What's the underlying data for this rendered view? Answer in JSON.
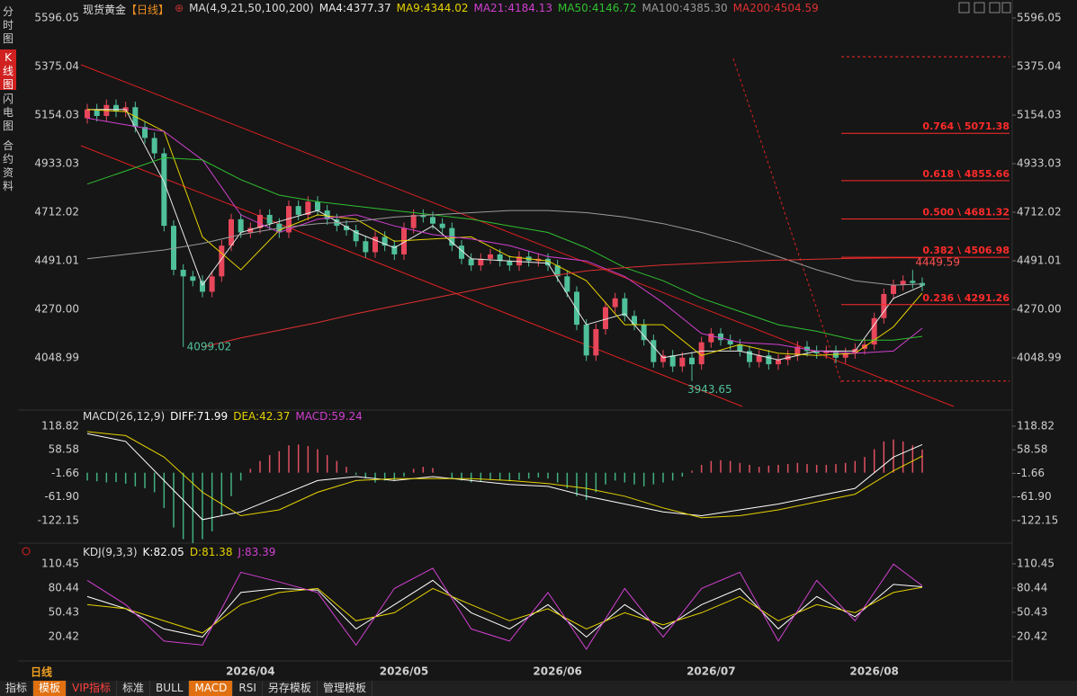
{
  "ui": {
    "sidebar": [
      "分时图",
      "K线图",
      "闪电图",
      "合约资料"
    ],
    "period_label": "日线",
    "toolbar": [
      "指标",
      "模板",
      "VIP指标",
      "标准",
      "BULL",
      "MACD",
      "RSI",
      "另存模板",
      "管理模板"
    ]
  },
  "chart_data": [
    {
      "type": "candlestick",
      "title": "现货黄金",
      "period": "【日线】",
      "ma_params": "MA(4,9,21,50,100,200)",
      "ylim": [
        3815.7,
        5645.2
      ],
      "yticks": [
        5596.05,
        5375.04,
        5154.03,
        4933.03,
        4712.02,
        4491.01,
        {
          "value": 4270,
          "label": "4270.00"
        },
        4048.99
      ],
      "xticks": [
        {
          "value": 17,
          "label": "2026/04"
        },
        {
          "value": 33,
          "label": "2026/05"
        },
        {
          "value": 49,
          "label": "2026/06"
        },
        {
          "value": 65,
          "label": "2026/07"
        },
        {
          "value": 82,
          "label": "2026/08"
        }
      ],
      "colors": {
        "up": "#e8465a",
        "down": "#4fc09a"
      },
      "candles": {
        "open": [
          5140,
          5180,
          5150,
          5200,
          5170,
          5190,
          5100,
          5050,
          4980,
          4650,
          4450,
          4420,
          4400,
          4350,
          4420,
          4560,
          4680,
          4620,
          4640,
          4700,
          4660,
          4620,
          4740,
          4700,
          4760,
          4720,
          4680,
          4650,
          4630,
          4580,
          4530,
          4600,
          4560,
          4520,
          4640,
          4700,
          4690,
          4660,
          4640,
          4560,
          4500,
          4470,
          4500,
          4520,
          4490,
          4470,
          4510,
          4490,
          4500,
          4470,
          4420,
          4350,
          4200,
          4060,
          4180,
          4280,
          4320,
          4240,
          4200,
          4130,
          4030,
          4060,
          4010,
          4050,
          4020,
          4120,
          4160,
          4130,
          4110,
          4080,
          4030,
          4060,
          4020,
          4040,
          4060,
          4100,
          4080,
          4070,
          4080,
          4050,
          4070,
          4090,
          4110,
          4230,
          4340,
          4380,
          4400,
          4390
        ],
        "high": [
          5205,
          5205,
          5225,
          5225,
          5215,
          5215,
          5125,
          5075,
          5005,
          4675,
          4475,
          4445,
          4425,
          4445,
          4585,
          4705,
          4705,
          4665,
          4725,
          4725,
          4685,
          4765,
          4765,
          4785,
          4785,
          4745,
          4705,
          4675,
          4655,
          4605,
          4625,
          4625,
          4585,
          4665,
          4725,
          4725,
          4715,
          4685,
          4665,
          4585,
          4525,
          4525,
          4545,
          4545,
          4515,
          4535,
          4535,
          4525,
          4525,
          4495,
          4445,
          4375,
          4225,
          4205,
          4305,
          4345,
          4345,
          4265,
          4225,
          4155,
          4085,
          4085,
          4075,
          4075,
          4145,
          4185,
          4185,
          4155,
          4135,
          4105,
          4085,
          4085,
          4065,
          4085,
          4125,
          4125,
          4105,
          4105,
          4105,
          4095,
          4115,
          4135,
          4255,
          4365,
          4405,
          4425,
          4449.59,
          4415
        ],
        "low": [
          5115,
          5125,
          5125,
          5145,
          5145,
          5075,
          5025,
          4955,
          4625,
          4425,
          4099.02,
          4375,
          4325,
          4325,
          4395,
          4535,
          4595,
          4595,
          4615,
          4635,
          4595,
          4595,
          4675,
          4675,
          4695,
          4655,
          4625,
          4605,
          4555,
          4505,
          4505,
          4535,
          4495,
          4495,
          4615,
          4665,
          4635,
          4615,
          4535,
          4475,
          4445,
          4445,
          4475,
          4465,
          4445,
          4445,
          4465,
          4465,
          4445,
          4395,
          4325,
          4175,
          4035,
          4035,
          4155,
          4255,
          4215,
          4175,
          4105,
          4005,
          4005,
          3985,
          3985,
          3943.65,
          3995,
          4095,
          4105,
          4085,
          4055,
          4005,
          4005,
          3995,
          3995,
          4015,
          4035,
          4055,
          4045,
          4045,
          4025,
          4025,
          4045,
          4065,
          4085,
          4205,
          4315,
          4355,
          4365,
          4353
        ],
        "close": [
          5180,
          5150,
          5200,
          5170,
          5190,
          5100,
          5050,
          4980,
          4650,
          4450,
          4420,
          4400,
          4350,
          4420,
          4560,
          4680,
          4620,
          4640,
          4700,
          4660,
          4620,
          4740,
          4700,
          4760,
          4720,
          4680,
          4650,
          4630,
          4580,
          4530,
          4600,
          4560,
          4520,
          4640,
          4700,
          4690,
          4660,
          4640,
          4560,
          4500,
          4470,
          4500,
          4520,
          4490,
          4470,
          4510,
          4490,
          4500,
          4470,
          4420,
          4350,
          4200,
          4060,
          4180,
          4280,
          4320,
          4240,
          4200,
          4130,
          4030,
          4060,
          4010,
          4050,
          4020,
          4120,
          4160,
          4130,
          4110,
          4080,
          4030,
          4060,
          4020,
          4040,
          4060,
          4100,
          4080,
          4070,
          4080,
          4050,
          4070,
          4090,
          4110,
          4230,
          4340,
          4380,
          4400,
          4390,
          4378
        ]
      },
      "line_x": [
        0,
        4,
        8,
        12,
        16,
        20,
        24,
        28,
        32,
        36,
        40,
        44,
        48,
        52,
        56,
        60,
        64,
        68,
        72,
        76,
        80,
        84,
        87
      ],
      "series": [
        {
          "name": "MA4:4377.37",
          "color": "#e8e8e8",
          "values": [
            5180,
            5180,
            4850,
            4380,
            4620,
            4670,
            4720,
            4620,
            4550,
            4650,
            4500,
            4490,
            4480,
            4200,
            4250,
            4050,
            4080,
            4080,
            4040,
            4080,
            4080,
            4320,
            4377.37
          ]
        },
        {
          "name": "MA9:4344.02",
          "color": "#e6d200",
          "values": [
            5180,
            5170,
            5080,
            4600,
            4450,
            4630,
            4700,
            4680,
            4580,
            4590,
            4600,
            4510,
            4490,
            4400,
            4200,
            4200,
            4060,
            4110,
            4070,
            4060,
            4070,
            4190,
            4344.02
          ]
        },
        {
          "name": "MA21:4184.13",
          "color": "#d040d0",
          "values": [
            5140,
            5110,
            5080,
            4950,
            4700,
            4620,
            4680,
            4700,
            4650,
            4610,
            4590,
            4560,
            4510,
            4490,
            4420,
            4300,
            4160,
            4120,
            4110,
            4080,
            4070,
            4080,
            4184.13
          ]
        },
        {
          "name": "MA50:4146.72",
          "color": "#30c030",
          "values": [
            4840,
            4900,
            4960,
            4950,
            4860,
            4790,
            4760,
            4740,
            4720,
            4700,
            4680,
            4650,
            4620,
            4550,
            4460,
            4400,
            4320,
            4260,
            4200,
            4170,
            4130,
            4130,
            4146.72
          ]
        },
        {
          "name": "MA100:4385.30",
          "color": "#9a9a9a",
          "values": [
            4500,
            4520,
            4540,
            4570,
            4610,
            4640,
            4660,
            4670,
            4690,
            4700,
            4710,
            4720,
            4720,
            4710,
            4690,
            4660,
            4620,
            4570,
            4510,
            4450,
            4400,
            4380,
            4385.3
          ]
        },
        {
          "name": "MA200:4504.59",
          "color": "#e03030",
          "values": [
            null,
            null,
            null,
            4098,
            4140,
            4175,
            4210,
            4250,
            4285,
            4320,
            4355,
            4390,
            4420,
            4445,
            4460,
            4472,
            4480,
            4488,
            4494,
            4498,
            4502,
            4504,
            4504.59
          ]
        }
      ],
      "fibonacci": {
        "high": 5419.75,
        "low": 3943.65,
        "color": "#ff2a2a",
        "levels": [
          {
            "value": 5071.38,
            "label": "0.764 \\ 5071.38"
          },
          {
            "value": 4855.66,
            "label": "0.618 \\ 4855.66"
          },
          {
            "value": 4681.32,
            "label": "0.500 \\ 4681.32"
          },
          {
            "value": 4506.98,
            "label": "0.382 \\ 4506.98"
          },
          {
            "value": 4291.26,
            "label": "0.236 \\ 4291.26"
          }
        ]
      }
    },
    {
      "type": "macd",
      "title": "MACD(26,12,9)",
      "ylim": [
        -170.9,
        137.2
      ],
      "yticks": [
        118.82,
        58.58,
        -1.66,
        {
          "value": -61.9,
          "label": "-61.90"
        },
        -122.15
      ],
      "histogram": {
        "name": "MACD:59.24",
        "color": "#d040d0",
        "up": "#e05060",
        "down": "#40b080",
        "values": [
          -20,
          -22,
          -25,
          -24,
          -28,
          -35,
          -40,
          -50,
          -90,
          -140,
          -170,
          -180,
          -170,
          -150,
          -110,
          -60,
          -20,
          10,
          30,
          45,
          55,
          70,
          72,
          68,
          60,
          45,
          30,
          15,
          -5,
          -15,
          -25,
          -20,
          -20,
          -10,
          10,
          15,
          12,
          0,
          -15,
          -20,
          -25,
          -22,
          -18,
          -20,
          -22,
          -18,
          -15,
          -12,
          -15,
          -25,
          -40,
          -60,
          -70,
          -50,
          -30,
          -20,
          -25,
          -30,
          -35,
          -30,
          -25,
          -20,
          -10,
          5,
          20,
          30,
          32,
          30,
          25,
          20,
          15,
          18,
          20,
          22,
          25,
          22,
          20,
          20,
          22,
          25,
          30,
          40,
          60,
          80,
          85,
          80,
          70,
          59.24
        ]
      },
      "line_x": [
        0,
        4,
        8,
        12,
        16,
        20,
        24,
        28,
        32,
        36,
        40,
        44,
        48,
        52,
        56,
        60,
        64,
        68,
        72,
        76,
        80,
        84,
        87
      ],
      "series": [
        {
          "name": "DIFF:71.99",
          "color": "#ffffff",
          "values": [
            100,
            80,
            -20,
            -120,
            -100,
            -60,
            -20,
            -10,
            -20,
            -10,
            -20,
            -30,
            -35,
            -60,
            -80,
            -100,
            -110,
            -95,
            -80,
            -60,
            -40,
            40,
            71.99
          ]
        },
        {
          "name": "DEA:42.37",
          "color": "#e6d200",
          "values": [
            105,
            95,
            40,
            -50,
            -110,
            -95,
            -50,
            -20,
            -15,
            -15,
            -15,
            -20,
            -28,
            -40,
            -60,
            -90,
            -115,
            -110,
            -95,
            -75,
            -55,
            5,
            42.37
          ]
        }
      ]
    },
    {
      "type": "line",
      "title": "KDJ(9,3,3)",
      "ylim": [
        -4,
        118.2
      ],
      "yticks": [
        110.45,
        80.44,
        50.43,
        20.42
      ],
      "line_x": [
        0,
        4,
        8,
        12,
        16,
        20,
        24,
        28,
        32,
        36,
        40,
        44,
        48,
        52,
        56,
        60,
        64,
        68,
        72,
        76,
        80,
        84,
        87
      ],
      "series": [
        {
          "name": "K:82.05",
          "color": "#ffffff",
          "values": [
            70,
            55,
            30,
            20,
            75,
            80,
            78,
            30,
            60,
            90,
            50,
            30,
            60,
            20,
            60,
            30,
            60,
            80,
            30,
            70,
            45,
            85,
            82.05
          ]
        },
        {
          "name": "D:81.38",
          "color": "#e6d200",
          "values": [
            60,
            55,
            40,
            25,
            60,
            75,
            80,
            40,
            50,
            80,
            60,
            40,
            55,
            30,
            50,
            35,
            50,
            70,
            40,
            60,
            50,
            75,
            81.38
          ]
        },
        {
          "name": "J:83.39",
          "color": "#d040d0",
          "values": [
            90,
            60,
            15,
            10,
            100,
            88,
            75,
            10,
            80,
            105,
            30,
            15,
            75,
            5,
            80,
            20,
            80,
            100,
            15,
            90,
            40,
            110,
            83.39
          ]
        }
      ]
    }
  ]
}
